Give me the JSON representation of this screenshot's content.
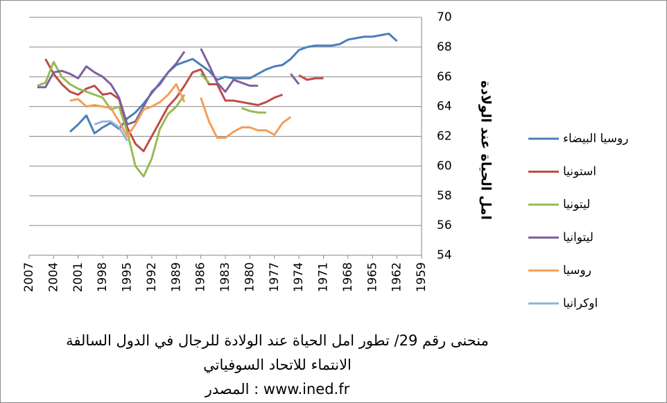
{
  "chart_data": {
    "type": "line",
    "y_label": "امل الحياة عند الولادة",
    "caption": [
      "منحنى رقم 29/ تطور امل الحياة عند الولادة للرجال في الدول السالفة",
      "الانتماء للاتحاد السوفياتي",
      "المصدر : www.ined.fr"
    ],
    "x": [
      2006,
      2005,
      2004,
      2003,
      2002,
      2001,
      2000,
      1999,
      1998,
      1997,
      1996,
      1995,
      1994,
      1993,
      1992,
      1991,
      1990,
      1989,
      1988,
      1987,
      1986,
      1985,
      1984,
      1983,
      1982,
      1981,
      1980,
      1979,
      1978,
      1977,
      1976,
      1975,
      1974,
      1973,
      1972,
      1971,
      1970,
      1969,
      1968,
      1967,
      1966,
      1965,
      1964,
      1963,
      1962
    ],
    "xlim": [
      2007,
      1959
    ],
    "xticks": [
      2007,
      2004,
      2001,
      1998,
      1995,
      1992,
      1989,
      1986,
      1983,
      1980,
      1977,
      1974,
      1971,
      1968,
      1965,
      1962,
      1959
    ],
    "ylim": [
      54,
      70
    ],
    "yticks": [
      54,
      56,
      58,
      60,
      62,
      64,
      66,
      68,
      70
    ],
    "grid": true,
    "legend": "right",
    "series": [
      {
        "name": "روسيا البيضاء",
        "color": "#4a7ebb",
        "values": [
          null,
          null,
          null,
          null,
          62.3,
          62.8,
          63.4,
          62.2,
          62.6,
          62.9,
          62.5,
          63.2,
          63.6,
          64.2,
          64.9,
          65.6,
          66.3,
          66.8,
          67.0,
          67.2,
          66.8,
          66.4,
          65.8,
          66.0,
          65.9,
          65.9,
          65.9,
          66.2,
          66.5,
          66.7,
          66.8,
          67.2,
          67.8,
          68.0,
          68.1,
          68.1,
          68.1,
          68.2,
          68.5,
          68.6,
          68.7,
          68.7,
          68.8,
          68.9,
          68.4
        ]
      },
      {
        "name": "استونيا",
        "color": "#be4b48",
        "values": [
          null,
          67.2,
          66.2,
          65.5,
          65.0,
          64.8,
          65.2,
          65.4,
          64.8,
          64.9,
          64.5,
          62.6,
          61.5,
          61.0,
          62.0,
          63.0,
          64.0,
          64.6,
          65.4,
          66.3,
          66.5,
          65.5,
          65.5,
          64.4,
          64.4,
          64.3,
          64.2,
          64.1,
          64.3,
          64.6,
          64.8,
          null,
          66.1,
          65.8,
          65.9,
          65.9,
          null,
          null,
          null,
          null,
          null,
          null,
          null,
          null,
          null
        ]
      },
      {
        "name": "ليتونيا",
        "color": "#98b954",
        "values": [
          65.4,
          65.6,
          67.0,
          66.0,
          65.5,
          65.2,
          65.0,
          64.8,
          64.6,
          63.8,
          64.0,
          62.3,
          60.0,
          59.3,
          60.5,
          62.5,
          63.5,
          64.0,
          64.8,
          null,
          66.2,
          65.6,
          null,
          null,
          null,
          63.9,
          63.7,
          63.6,
          63.6,
          null,
          null,
          null,
          null,
          null,
          null,
          null,
          null,
          null,
          null,
          null,
          null,
          null,
          null,
          null,
          null
        ]
      },
      {
        "name": "ليتوانيا",
        "color": "#7d60a0",
        "values": [
          65.3,
          65.3,
          66.3,
          66.4,
          66.2,
          65.9,
          66.7,
          66.3,
          66.0,
          65.5,
          64.6,
          62.8,
          63.0,
          64.0,
          65.0,
          65.5,
          66.3,
          66.9,
          67.7,
          null,
          67.9,
          66.8,
          65.6,
          65.0,
          65.8,
          65.6,
          65.4,
          65.4,
          null,
          null,
          null,
          66.2,
          65.5,
          null,
          null,
          null,
          null,
          null,
          null,
          null,
          null,
          null,
          null,
          null,
          null
        ]
      },
      {
        "name": "روسيا",
        "color": "#f59d56",
        "values": [
          null,
          null,
          null,
          null,
          64.4,
          64.5,
          64.0,
          64.1,
          64.0,
          63.9,
          63.0,
          62.0,
          62.8,
          63.8,
          64.0,
          64.3,
          64.8,
          65.5,
          64.3,
          null,
          64.6,
          63.0,
          61.9,
          61.9,
          62.3,
          62.6,
          62.6,
          62.4,
          62.4,
          62.1,
          62.9,
          63.3,
          null,
          null,
          null,
          null,
          null,
          null,
          null,
          null,
          null,
          null,
          null,
          null,
          null
        ]
      },
      {
        "name": "اوكرانيا",
        "color": "#95b3d7",
        "values": [
          null,
          null,
          null,
          null,
          null,
          null,
          null,
          62.8,
          63.0,
          63.0,
          62.6,
          61.7,
          null,
          null,
          null,
          null,
          null,
          null,
          null,
          null,
          null,
          null,
          null,
          null,
          null,
          null,
          null,
          null,
          null,
          null,
          null,
          null,
          null,
          null,
          null,
          null,
          null,
          null,
          null,
          null,
          null,
          null,
          null,
          null,
          null
        ]
      }
    ]
  }
}
